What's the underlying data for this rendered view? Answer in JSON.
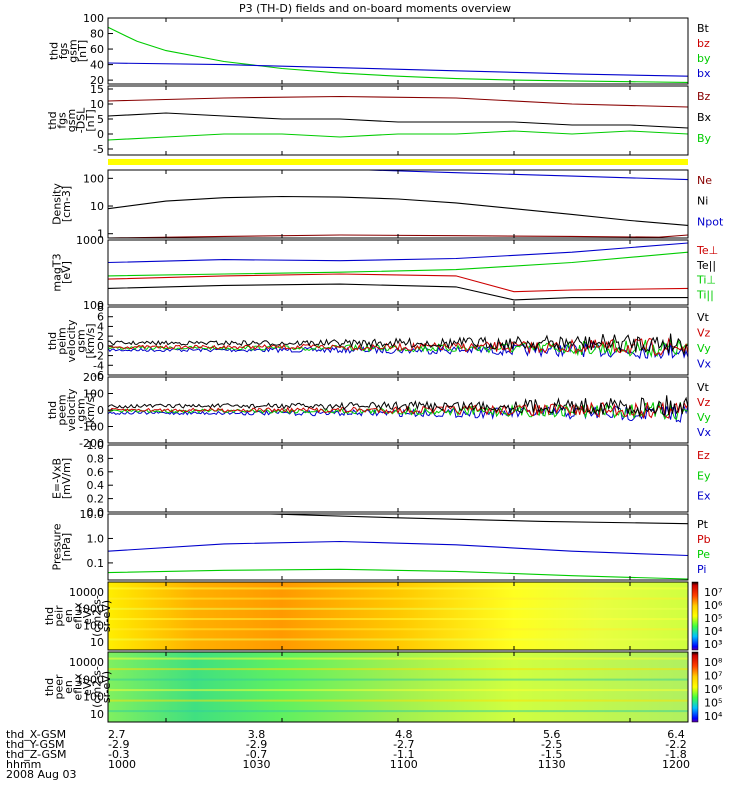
{
  "title": "P3 (TH-D) fields and on-board moments overview",
  "colors": {
    "black": "#000000",
    "red": "#cc0000",
    "green": "#00cc00",
    "blue": "#0000cc",
    "yellow": "#ffff00",
    "darkred": "#880000"
  },
  "chart_data": [
    {
      "type": "line",
      "panel": "fgs",
      "ylabel": [
        "thd",
        "fgs",
        "gsm",
        "[nT]"
      ],
      "ylim": [
        15,
        100
      ],
      "yticks": [
        "100",
        "80",
        "60",
        "40",
        "20"
      ],
      "legend": [
        {
          "label": "Bt",
          "color": "black"
        },
        {
          "label": "bz",
          "color": "red"
        },
        {
          "label": "by",
          "color": "green"
        },
        {
          "label": "bx",
          "color": "blue"
        }
      ],
      "series": [
        {
          "name": "by",
          "color": "green",
          "x": [
            0,
            0.05,
            0.1,
            0.2,
            0.3,
            0.4,
            0.5,
            0.6,
            0.7,
            0.8,
            0.9,
            1.0
          ],
          "y": [
            88,
            70,
            58,
            44,
            35,
            29,
            25,
            22,
            20,
            19,
            18,
            17
          ]
        },
        {
          "name": "bx",
          "color": "blue",
          "x": [
            0,
            0.2,
            0.4,
            0.6,
            0.8,
            1.0
          ],
          "y": [
            42,
            40,
            36,
            32,
            28,
            25
          ]
        }
      ]
    },
    {
      "type": "line",
      "panel": "fgs-dsl",
      "ylabel": [
        "thd",
        "fgs",
        "gsm",
        "-DSL",
        "[nT]"
      ],
      "ylim": [
        -7,
        16
      ],
      "yticks": [
        "15",
        "10",
        "5",
        "0",
        "-5"
      ],
      "legend": [
        {
          "label": "Bz",
          "color": "darkred"
        },
        {
          "label": "Bx",
          "color": "black"
        },
        {
          "label": "By",
          "color": "green"
        }
      ],
      "series": [
        {
          "name": "Bz",
          "color": "darkred",
          "x": [
            0,
            0.2,
            0.4,
            0.6,
            0.8,
            1.0
          ],
          "y": [
            11,
            12,
            12.5,
            12,
            10,
            9
          ]
        },
        {
          "name": "Bx",
          "color": "black",
          "x": [
            0,
            0.1,
            0.2,
            0.3,
            0.4,
            0.5,
            0.6,
            0.7,
            0.8,
            0.9,
            1.0
          ],
          "y": [
            6,
            7,
            6,
            5,
            5,
            4,
            4,
            4,
            3,
            3,
            2
          ]
        },
        {
          "name": "By",
          "color": "green",
          "x": [
            0,
            0.1,
            0.2,
            0.3,
            0.4,
            0.5,
            0.6,
            0.7,
            0.8,
            0.9,
            1.0
          ],
          "y": [
            -2,
            -1,
            0,
            0,
            -1,
            0,
            0,
            1,
            0,
            1,
            0
          ]
        }
      ]
    },
    {
      "type": "line",
      "panel": "density",
      "scale": "log",
      "ylabel": [
        "Density",
        "[cm-3]"
      ],
      "ylim": [
        0.7,
        200
      ],
      "yticks": [
        "100",
        "10",
        "1"
      ],
      "legend": [
        {
          "label": "Ne",
          "color": "darkred"
        },
        {
          "label": "Ni",
          "color": "black"
        },
        {
          "label": "Npot",
          "color": "blue"
        }
      ],
      "series": [
        {
          "name": "Ni",
          "color": "black",
          "x": [
            0,
            0.1,
            0.2,
            0.3,
            0.4,
            0.5,
            0.6,
            0.7,
            0.8,
            0.9,
            1.0
          ],
          "y": [
            8,
            15,
            20,
            22,
            21,
            18,
            13,
            8,
            5,
            3,
            2
          ]
        },
        {
          "name": "Npot",
          "color": "blue",
          "x": [
            0.45,
            0.6,
            0.8,
            1.0
          ],
          "y": [
            200,
            160,
            120,
            90
          ]
        },
        {
          "name": "Ne",
          "color": "darkred",
          "x": [
            0,
            0.2,
            0.4,
            0.6,
            0.8,
            0.95,
            1.0
          ],
          "y": [
            0.7,
            0.8,
            0.9,
            0.85,
            0.8,
            0.75,
            0.9
          ]
        }
      ]
    },
    {
      "type": "line",
      "panel": "temperature",
      "scale": "log",
      "ylabel": [
        "magT3",
        "[eV]"
      ],
      "ylim": [
        100,
        1000
      ],
      "yticks": [
        "1000",
        "100"
      ],
      "legend": [
        {
          "label": "Te⊥",
          "color": "red"
        },
        {
          "label": "Te||",
          "color": "black"
        },
        {
          "label": "Ti⊥",
          "color": "green"
        },
        {
          "label": "Ti||",
          "color": "green"
        }
      ],
      "series": [
        {
          "name": "blue",
          "color": "blue",
          "x": [
            0,
            0.2,
            0.4,
            0.6,
            0.8,
            1.0
          ],
          "y": [
            450,
            500,
            480,
            520,
            650,
            900
          ]
        },
        {
          "name": "green",
          "color": "green",
          "x": [
            0,
            0.2,
            0.4,
            0.6,
            0.8,
            1.0
          ],
          "y": [
            280,
            300,
            320,
            350,
            450,
            650
          ]
        },
        {
          "name": "red",
          "color": "red",
          "x": [
            0,
            0.2,
            0.4,
            0.6,
            0.7,
            0.8,
            1.0
          ],
          "y": [
            250,
            280,
            300,
            280,
            160,
            170,
            180
          ]
        },
        {
          "name": "black",
          "color": "black",
          "x": [
            0,
            0.2,
            0.4,
            0.6,
            0.7,
            0.8,
            1.0
          ],
          "y": [
            180,
            200,
            210,
            190,
            120,
            130,
            130
          ]
        }
      ]
    },
    {
      "type": "line",
      "panel": "velocity1",
      "noise": true,
      "ylabel": [
        "thd",
        "peim",
        "velocity",
        "gsm",
        "[km/s]"
      ],
      "ylim": [
        -6,
        8
      ],
      "yticks": [
        "8",
        "6",
        "4",
        "2",
        "0",
        "-2",
        "-4",
        "-6"
      ],
      "legend": [
        {
          "label": "Vt",
          "color": "black"
        },
        {
          "label": "Vz",
          "color": "red"
        },
        {
          "label": "Vy",
          "color": "green"
        },
        {
          "label": "Vx",
          "color": "blue"
        }
      ]
    },
    {
      "type": "line",
      "panel": "velocity2",
      "noise": true,
      "ylabel": [
        "thd",
        "peem",
        "velocity",
        "gsm",
        "[km/s]"
      ],
      "ylim": [
        -200,
        200
      ],
      "yticks": [
        "200",
        "100",
        "0",
        "-100",
        "-200"
      ],
      "legend": [
        {
          "label": "Vt",
          "color": "black"
        },
        {
          "label": "Vz",
          "color": "red"
        },
        {
          "label": "Vy",
          "color": "green"
        },
        {
          "label": "Vx",
          "color": "blue"
        }
      ]
    },
    {
      "type": "line",
      "panel": "efield",
      "ylabel": [
        "E=-VxB",
        "[mV/m]"
      ],
      "ylim": [
        0,
        1
      ],
      "yticks": [
        "1.0",
        "0.8",
        "0.6",
        "0.4",
        "0.2",
        "0.0"
      ],
      "legend": [
        {
          "label": "Ez",
          "color": "red"
        },
        {
          "label": "Ey",
          "color": "green"
        },
        {
          "label": "Ex",
          "color": "blue"
        }
      ]
    },
    {
      "type": "line",
      "panel": "pressure",
      "scale": "log",
      "ylabel": [
        "Pressure",
        "[nPa]"
      ],
      "ylim": [
        0.02,
        10
      ],
      "yticks": [
        "10.0",
        "1.0",
        "0.1"
      ],
      "legend": [
        {
          "label": "Pt",
          "color": "black"
        },
        {
          "label": "Pb",
          "color": "red"
        },
        {
          "label": "Pe",
          "color": "green"
        },
        {
          "label": "Pi",
          "color": "blue"
        }
      ],
      "series": [
        {
          "name": "Pt",
          "color": "black",
          "x": [
            0.28,
            0.5,
            0.75,
            1.0
          ],
          "y": [
            10,
            7,
            5,
            4
          ]
        },
        {
          "name": "Pi",
          "color": "blue",
          "x": [
            0,
            0.2,
            0.4,
            0.6,
            0.8,
            1.0
          ],
          "y": [
            0.3,
            0.6,
            0.75,
            0.55,
            0.3,
            0.2
          ]
        },
        {
          "name": "Pe",
          "color": "green",
          "x": [
            0,
            0.2,
            0.4,
            0.6,
            0.8,
            1.0
          ],
          "y": [
            0.04,
            0.05,
            0.055,
            0.045,
            0.03,
            0.022
          ]
        }
      ]
    },
    {
      "type": "heatmap",
      "panel": "ion-spectrogram",
      "ylabel": [
        "thd",
        "peir",
        "en",
        "eflux",
        "eV/",
        "(cm2-s-",
        "sr-eV)"
      ],
      "yticks": [
        "10000",
        "1000",
        "100",
        "10"
      ],
      "colorbar": [
        "10⁷",
        "10⁶",
        "10⁵",
        "10⁴",
        "10³"
      ]
    },
    {
      "type": "heatmap",
      "panel": "electron-spectrogram",
      "ylabel": [
        "thd",
        "peer",
        "en",
        "eflux",
        "eV/",
        "(cm2-s-",
        "sr-eV)"
      ],
      "yticks": [
        "10000",
        "1000",
        "100",
        "10"
      ],
      "colorbar": [
        "10⁸",
        "10⁷",
        "10⁶",
        "10⁵",
        "10⁴"
      ]
    }
  ],
  "xaxis": {
    "rows": [
      {
        "label": "thd_X-GSM",
        "values": [
          "2.7",
          "3.8",
          "4.8",
          "5.6",
          "6.4"
        ]
      },
      {
        "label": "thd_Y-GSM",
        "values": [
          "-2.9",
          "-2.9",
          "-2.7",
          "-2.5",
          "-2.2"
        ]
      },
      {
        "label": "thd_Z-GSM",
        "values": [
          "-0.3",
          "-0.7",
          "-1.1",
          "-1.5",
          "-1.8"
        ]
      },
      {
        "label": "hhmm",
        "values": [
          "1000",
          "1030",
          "1100",
          "1130",
          "1200"
        ]
      }
    ],
    "date": "2008 Aug 03"
  }
}
